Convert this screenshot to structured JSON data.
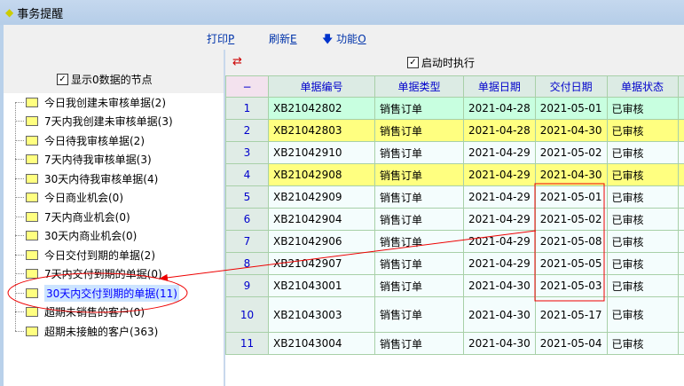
{
  "window": {
    "title": "事务提醒"
  },
  "toolbar": {
    "print": "打印",
    "print_key": "P",
    "refresh": "刷新",
    "refresh_key": "E",
    "function": "功能",
    "function_key": "O"
  },
  "left": {
    "show_zero_label": "显示0数据的节点",
    "show_zero_checked": true,
    "tree": [
      "今日我创建未审核单据(2)",
      "7天内我创建未审核单据(3)",
      "今日待我审核单据(2)",
      "7天内待我审核单据(3)",
      "30天内待我审核单据(4)",
      "今日商业机会(0)",
      "7天内商业机会(0)",
      "30天内商业机会(0)",
      "今日交付到期的单据(2)",
      "7天内交付到期的单据(0)",
      "30天内交付到期的单据(11)",
      "超期未销售的客户(0)",
      "超期未接触的客户(363)"
    ],
    "selected_index": 10
  },
  "right": {
    "autorun_label": "启动时执行",
    "autorun_checked": true,
    "columns": [
      "−",
      "单据编号",
      "单据类型",
      "单据日期",
      "交付日期",
      "单据状态",
      ""
    ],
    "rows": [
      [
        "1",
        "XB21042802",
        "销售订单",
        "2021-04-28",
        "2021-05-01",
        "已审核"
      ],
      [
        "2",
        "XB21042803",
        "销售订单",
        "2021-04-28",
        "2021-04-30",
        "已审核"
      ],
      [
        "3",
        "XB21042910",
        "销售订单",
        "2021-04-29",
        "2021-05-02",
        "已审核"
      ],
      [
        "4",
        "XB21042908",
        "销售订单",
        "2021-04-29",
        "2021-04-30",
        "已审核"
      ],
      [
        "5",
        "XB21042909",
        "销售订单",
        "2021-04-29",
        "2021-05-01",
        "已审核"
      ],
      [
        "6",
        "XB21042904",
        "销售订单",
        "2021-04-29",
        "2021-05-02",
        "已审核"
      ],
      [
        "7",
        "XB21042906",
        "销售订单",
        "2021-04-29",
        "2021-05-08",
        "已审核"
      ],
      [
        "8",
        "XB21042907",
        "销售订单",
        "2021-04-29",
        "2021-05-05",
        "已审核"
      ],
      [
        "9",
        "XB21043001",
        "销售订单",
        "2021-04-30",
        "2021-05-03",
        "已审核"
      ],
      [
        "10",
        "XB21043003",
        "销售订单",
        "2021-04-30",
        "2021-05-17",
        "已审核"
      ],
      [
        "11",
        "XB21043004",
        "销售订单",
        "2021-04-30",
        "2021-05-04",
        "已审核"
      ]
    ],
    "row_styles": [
      "g",
      "y",
      "n",
      "y",
      "n",
      "n",
      "n",
      "n",
      "n",
      "n tall",
      "n"
    ]
  },
  "colors": {
    "highlight_yellow": "#ffff80",
    "highlight_green": "#c8ffe0",
    "annotation_red": "#ee0000"
  }
}
